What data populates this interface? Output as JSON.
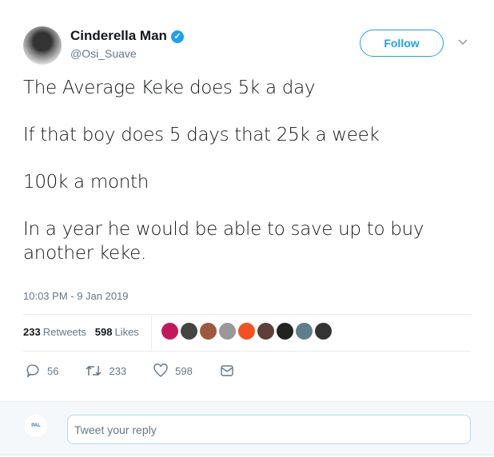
{
  "author": {
    "name": "Cinderella Man",
    "handle": "@Osi_Suave",
    "verified": true
  },
  "follow_label": "Follow",
  "tweet_lines": [
    "The Average Keke does 5k a day",
    "If that boy does 5 days that 25k a week",
    "100k a month",
    "In a year he would be able to save up to buy another keke."
  ],
  "timestamp": "10:03 PM - 9 Jan 2019",
  "stats": {
    "retweets": "233",
    "retweets_label": "Retweets",
    "likes": "598",
    "likes_label": "Likes"
  },
  "liker_colors": [
    "#c2185b",
    "#444444",
    "#9c5a3c",
    "#999999",
    "#f4511e",
    "#5d4037",
    "#222222",
    "#607d8b",
    "#333333"
  ],
  "actions": {
    "replies": "56",
    "retweets": "233",
    "likes": "598"
  },
  "reply": {
    "placeholder": "Tweet your reply",
    "user_avatar_text": "PAL"
  },
  "accent": "#1da1f2"
}
